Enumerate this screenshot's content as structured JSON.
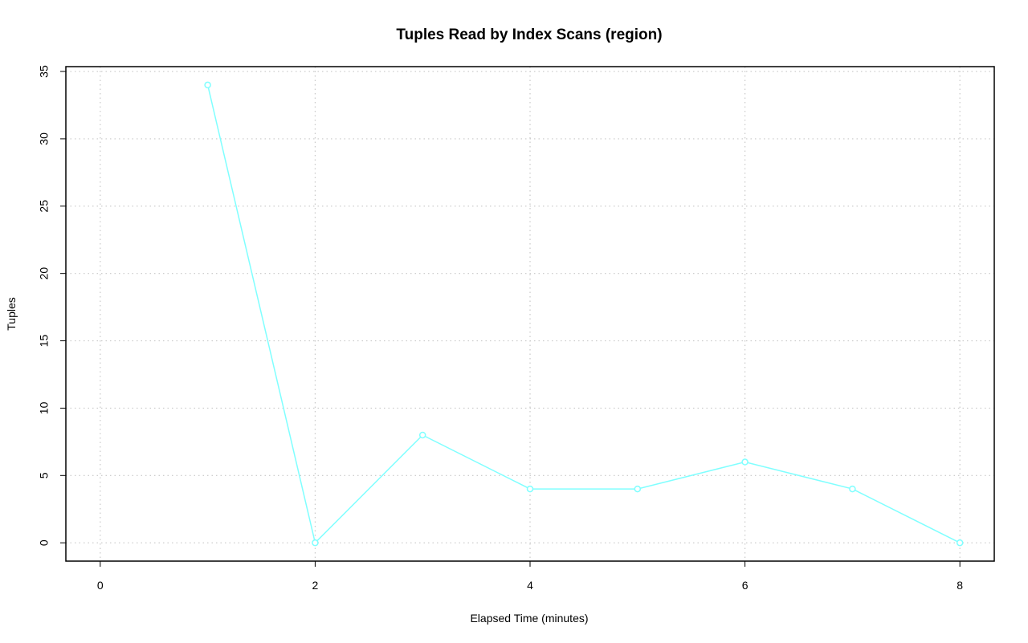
{
  "chart_data": {
    "type": "line",
    "title": "Tuples Read by Index Scans (region)",
    "x_label": "Elapsed Time (minutes)",
    "y_label": "Tuples",
    "x": [
      1,
      2,
      3,
      4,
      5,
      6,
      7,
      8
    ],
    "series": [
      {
        "color": "#80ffff",
        "values": [
          34,
          0,
          8,
          4,
          4,
          6,
          4,
          0
        ]
      }
    ],
    "xlim": [
      -0.32,
      8.32
    ],
    "xticks": [
      0,
      2,
      4,
      6,
      8
    ],
    "ylim": [
      -1.36,
      35.36
    ],
    "yticks": [
      0,
      5,
      10,
      15,
      20,
      25,
      30,
      35
    ],
    "grid": true
  }
}
